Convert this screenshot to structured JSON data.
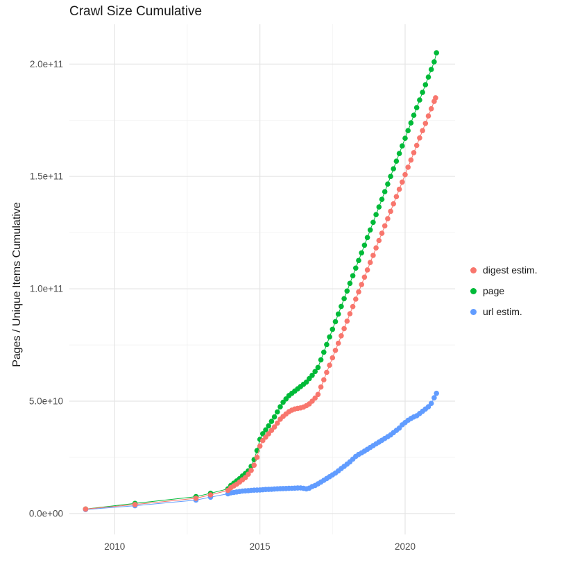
{
  "chart_data": {
    "type": "scatter",
    "title": "Crawl Size Cumulative",
    "xlabel": "",
    "ylabel": "Pages / Unique Items Cumulative",
    "y_unit": "1e9 (point values are billions of pages / items)",
    "grid": true,
    "legend_position": "right",
    "x_domain": [
      2008.44,
      2021.72
    ],
    "y_domain": [
      -9.3,
      217.7
    ],
    "x_ticks": [
      {
        "value": 2010,
        "label": "2010"
      },
      {
        "value": 2015,
        "label": "2015"
      },
      {
        "value": 2020,
        "label": "2020"
      }
    ],
    "x_minor": [
      2012.5,
      2017.5
    ],
    "y_ticks": [
      {
        "value": 0,
        "label": "0.0e+00"
      },
      {
        "value": 50,
        "label": "5.0e+10"
      },
      {
        "value": 100,
        "label": "1.0e+11"
      },
      {
        "value": 150,
        "label": "1.5e+11"
      },
      {
        "value": 200,
        "label": "2.0e+11"
      }
    ],
    "y_minor": [
      25,
      75,
      125,
      175
    ],
    "series": [
      {
        "name": "digest estim.",
        "color": "#F8766D",
        "points": [
          [
            2009.0,
            2.0
          ],
          [
            2010.7,
            4.0
          ],
          [
            2012.8,
            6.8
          ],
          [
            2013.3,
            8.3
          ],
          [
            2013.9,
            10.3
          ],
          [
            2014.0,
            11.5
          ],
          [
            2014.1,
            12.3
          ],
          [
            2014.2,
            13.1
          ],
          [
            2014.3,
            14.0
          ],
          [
            2014.4,
            15.0
          ],
          [
            2014.5,
            16.0
          ],
          [
            2014.6,
            17.5
          ],
          [
            2014.7,
            19.2
          ],
          [
            2014.8,
            21.5
          ],
          [
            2014.9,
            25.0
          ],
          [
            2015.0,
            30.0
          ],
          [
            2015.1,
            32.5
          ],
          [
            2015.2,
            34.0
          ],
          [
            2015.3,
            35.5
          ],
          [
            2015.4,
            37.0
          ],
          [
            2015.5,
            38.5
          ],
          [
            2015.6,
            40.2
          ],
          [
            2015.7,
            42.0
          ],
          [
            2015.8,
            43.2
          ],
          [
            2015.9,
            44.3
          ],
          [
            2016.0,
            45.3
          ],
          [
            2016.1,
            46.0
          ],
          [
            2016.2,
            46.5
          ],
          [
            2016.3,
            46.8
          ],
          [
            2016.4,
            47.0
          ],
          [
            2016.5,
            47.4
          ],
          [
            2016.6,
            48.0
          ],
          [
            2016.7,
            48.8
          ],
          [
            2016.8,
            50.0
          ],
          [
            2016.9,
            51.4
          ],
          [
            2017.0,
            53.0
          ],
          [
            2017.1,
            56.3
          ],
          [
            2017.2,
            59.5
          ],
          [
            2017.3,
            62.8
          ],
          [
            2017.4,
            66.0
          ],
          [
            2017.5,
            69.3
          ],
          [
            2017.6,
            72.6
          ],
          [
            2017.7,
            75.8
          ],
          [
            2017.8,
            79.1
          ],
          [
            2017.9,
            82.3
          ],
          [
            2018.0,
            85.6
          ],
          [
            2018.1,
            88.9
          ],
          [
            2018.2,
            92.1
          ],
          [
            2018.3,
            95.4
          ],
          [
            2018.4,
            98.6
          ],
          [
            2018.5,
            101.9
          ],
          [
            2018.6,
            105.2
          ],
          [
            2018.7,
            108.4
          ],
          [
            2018.8,
            111.7
          ],
          [
            2018.9,
            114.9
          ],
          [
            2019.0,
            118.2
          ],
          [
            2019.1,
            121.5
          ],
          [
            2019.2,
            124.7
          ],
          [
            2019.3,
            128.0
          ],
          [
            2019.4,
            131.2
          ],
          [
            2019.5,
            134.5
          ],
          [
            2019.6,
            137.8
          ],
          [
            2019.7,
            141.0
          ],
          [
            2019.8,
            144.3
          ],
          [
            2019.9,
            147.5
          ],
          [
            2020.0,
            150.8
          ],
          [
            2020.1,
            154.1
          ],
          [
            2020.2,
            157.3
          ],
          [
            2020.3,
            160.6
          ],
          [
            2020.4,
            163.8
          ],
          [
            2020.5,
            167.1
          ],
          [
            2020.6,
            170.4
          ],
          [
            2020.7,
            173.6
          ],
          [
            2020.8,
            176.9
          ],
          [
            2020.9,
            180.1
          ],
          [
            2021.0,
            183.4
          ],
          [
            2021.05,
            185.0
          ]
        ]
      },
      {
        "name": "page",
        "color": "#00BA38",
        "points": [
          [
            2009.0,
            2.0
          ],
          [
            2010.7,
            4.5
          ],
          [
            2012.8,
            7.5
          ],
          [
            2013.3,
            9.0
          ],
          [
            2013.9,
            11.0
          ],
          [
            2014.0,
            12.5
          ],
          [
            2014.1,
            13.5
          ],
          [
            2014.2,
            14.5
          ],
          [
            2014.3,
            15.5
          ],
          [
            2014.4,
            16.7
          ],
          [
            2014.5,
            17.8
          ],
          [
            2014.6,
            19.0
          ],
          [
            2014.7,
            21.0
          ],
          [
            2014.8,
            24.0
          ],
          [
            2014.9,
            28.0
          ],
          [
            2015.0,
            33.0
          ],
          [
            2015.1,
            35.5
          ],
          [
            2015.2,
            37.2
          ],
          [
            2015.3,
            39.0
          ],
          [
            2015.4,
            41.0
          ],
          [
            2015.5,
            43.0
          ],
          [
            2015.6,
            45.2
          ],
          [
            2015.7,
            47.5
          ],
          [
            2015.8,
            49.5
          ],
          [
            2015.9,
            51.0
          ],
          [
            2016.0,
            52.5
          ],
          [
            2016.1,
            53.5
          ],
          [
            2016.2,
            54.5
          ],
          [
            2016.3,
            55.5
          ],
          [
            2016.4,
            56.5
          ],
          [
            2016.5,
            57.5
          ],
          [
            2016.6,
            58.5
          ],
          [
            2016.7,
            60.0
          ],
          [
            2016.8,
            61.5
          ],
          [
            2016.9,
            63.2
          ],
          [
            2017.0,
            65.0
          ],
          [
            2017.1,
            68.4
          ],
          [
            2017.2,
            71.8
          ],
          [
            2017.3,
            75.2
          ],
          [
            2017.4,
            78.6
          ],
          [
            2017.5,
            82.0
          ],
          [
            2017.6,
            85.4
          ],
          [
            2017.7,
            88.8
          ],
          [
            2017.8,
            92.2
          ],
          [
            2017.9,
            95.6
          ],
          [
            2018.0,
            99.0
          ],
          [
            2018.1,
            102.4
          ],
          [
            2018.2,
            105.8
          ],
          [
            2018.3,
            109.2
          ],
          [
            2018.4,
            112.6
          ],
          [
            2018.5,
            116.0
          ],
          [
            2018.6,
            119.4
          ],
          [
            2018.7,
            122.8
          ],
          [
            2018.8,
            126.2
          ],
          [
            2018.9,
            129.6
          ],
          [
            2019.0,
            133.0
          ],
          [
            2019.1,
            136.4
          ],
          [
            2019.2,
            139.8
          ],
          [
            2019.3,
            143.2
          ],
          [
            2019.4,
            146.6
          ],
          [
            2019.5,
            150.0
          ],
          [
            2019.6,
            153.4
          ],
          [
            2019.7,
            156.8
          ],
          [
            2019.8,
            160.2
          ],
          [
            2019.9,
            163.6
          ],
          [
            2020.0,
            167.0
          ],
          [
            2020.1,
            170.4
          ],
          [
            2020.2,
            173.8
          ],
          [
            2020.3,
            177.2
          ],
          [
            2020.4,
            180.6
          ],
          [
            2020.5,
            184.0
          ],
          [
            2020.6,
            187.4
          ],
          [
            2020.7,
            190.8
          ],
          [
            2020.8,
            194.2
          ],
          [
            2020.9,
            197.6
          ],
          [
            2021.0,
            201.0
          ],
          [
            2021.08,
            205.0
          ]
        ]
      },
      {
        "name": "url estim.",
        "color": "#619CFF",
        "points": [
          [
            2009.0,
            1.8
          ],
          [
            2010.7,
            3.5
          ],
          [
            2012.8,
            6.0
          ],
          [
            2013.3,
            7.3
          ],
          [
            2013.9,
            8.8
          ],
          [
            2014.0,
            9.2
          ],
          [
            2014.1,
            9.4
          ],
          [
            2014.2,
            9.6
          ],
          [
            2014.3,
            9.8
          ],
          [
            2014.4,
            10.0
          ],
          [
            2014.5,
            10.1
          ],
          [
            2014.6,
            10.2
          ],
          [
            2014.7,
            10.3
          ],
          [
            2014.8,
            10.4
          ],
          [
            2014.9,
            10.45
          ],
          [
            2015.0,
            10.5
          ],
          [
            2015.1,
            10.6
          ],
          [
            2015.2,
            10.7
          ],
          [
            2015.3,
            10.75
          ],
          [
            2015.4,
            10.8
          ],
          [
            2015.5,
            10.9
          ],
          [
            2015.6,
            11.0
          ],
          [
            2015.7,
            11.05
          ],
          [
            2015.8,
            11.1
          ],
          [
            2015.9,
            11.15
          ],
          [
            2016.0,
            11.2
          ],
          [
            2016.1,
            11.25
          ],
          [
            2016.2,
            11.3
          ],
          [
            2016.3,
            11.35
          ],
          [
            2016.4,
            11.4
          ],
          [
            2016.5,
            11.2
          ],
          [
            2016.6,
            11.0
          ],
          [
            2016.7,
            11.3
          ],
          [
            2016.8,
            12.0
          ],
          [
            2016.9,
            12.5
          ],
          [
            2017.0,
            13.2
          ],
          [
            2017.1,
            14.0
          ],
          [
            2017.2,
            14.8
          ],
          [
            2017.3,
            15.6
          ],
          [
            2017.4,
            16.4
          ],
          [
            2017.5,
            17.2
          ],
          [
            2017.6,
            18.0
          ],
          [
            2017.7,
            19.0
          ],
          [
            2017.8,
            20.0
          ],
          [
            2017.9,
            21.0
          ],
          [
            2018.0,
            22.0
          ],
          [
            2018.1,
            23.0
          ],
          [
            2018.2,
            24.2
          ],
          [
            2018.3,
            25.4
          ],
          [
            2018.4,
            26.3
          ],
          [
            2018.5,
            27.0
          ],
          [
            2018.6,
            27.8
          ],
          [
            2018.7,
            28.6
          ],
          [
            2018.8,
            29.4
          ],
          [
            2018.9,
            30.2
          ],
          [
            2019.0,
            31.0
          ],
          [
            2019.1,
            31.8
          ],
          [
            2019.2,
            32.6
          ],
          [
            2019.3,
            33.4
          ],
          [
            2019.4,
            34.2
          ],
          [
            2019.5,
            35.0
          ],
          [
            2019.6,
            36.0
          ],
          [
            2019.7,
            37.0
          ],
          [
            2019.8,
            38.0
          ],
          [
            2019.9,
            39.5
          ],
          [
            2020.0,
            40.5
          ],
          [
            2020.1,
            41.5
          ],
          [
            2020.2,
            42.3
          ],
          [
            2020.3,
            43.0
          ],
          [
            2020.4,
            43.5
          ],
          [
            2020.5,
            44.5
          ],
          [
            2020.6,
            45.5
          ],
          [
            2020.7,
            46.5
          ],
          [
            2020.8,
            47.5
          ],
          [
            2020.9,
            49.0
          ],
          [
            2021.0,
            51.5
          ],
          [
            2021.08,
            53.5
          ]
        ]
      }
    ],
    "style": {
      "grid_major_color": "#e5e5e5",
      "grid_minor_color": "#f2f2f2",
      "tick_label_color": "#4d4d4d",
      "text_color": "#1a1a1a",
      "background": "#ffffff"
    }
  }
}
